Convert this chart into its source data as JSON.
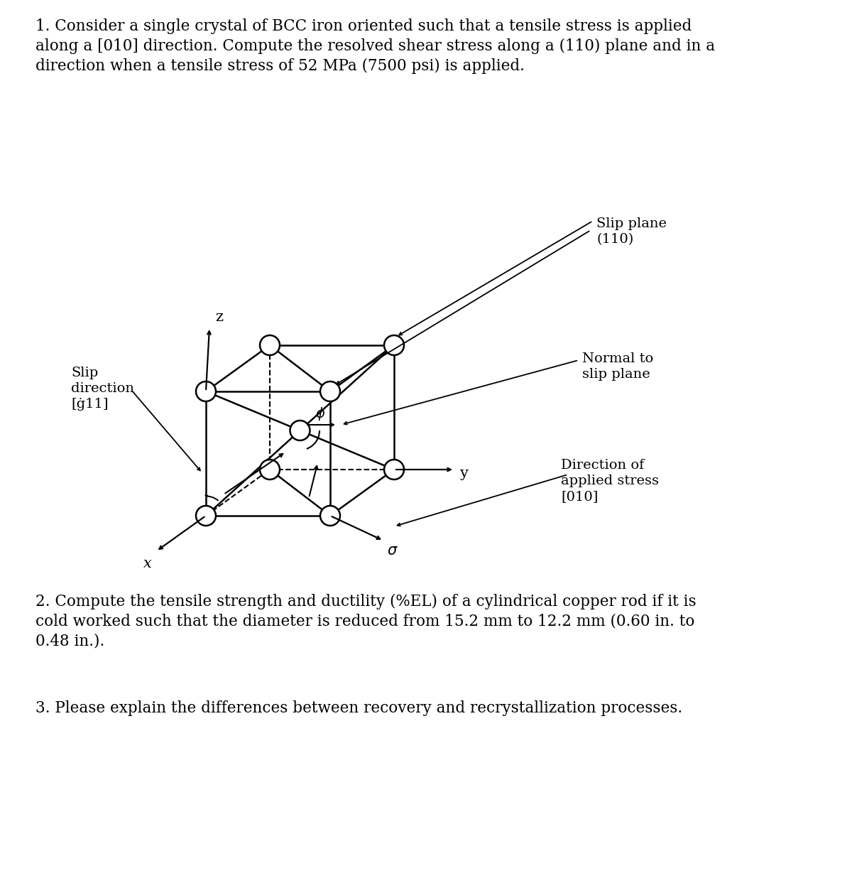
{
  "text_q1_line1": "1. Consider a single crystal of BCC iron oriented such that a tensile stress is applied",
  "text_q1_line2": "along a [010] direction. Compute the resolved shear stress along a (110) plane and in a",
  "text_q1_line3": "direction when a tensile stress of 52 MPa (7500 psi) is applied.",
  "text_q2_line1": "2. Compute the tensile strength and ductility (%EL) of a cylindrical copper rod if it is",
  "text_q2_line2": "cold worked such that the diameter is reduced from 15.2 mm to 12.2 mm (0.60 in. to",
  "text_q2_line3": "0.48 in.).",
  "text_q3": "3. Please explain the differences between recovery and recrystallization processes.",
  "bg_color": "#ffffff",
  "text_color": "#000000",
  "font_size": 15.5,
  "diagram_label_fontsize": 14,
  "axis_label_fontsize": 15
}
